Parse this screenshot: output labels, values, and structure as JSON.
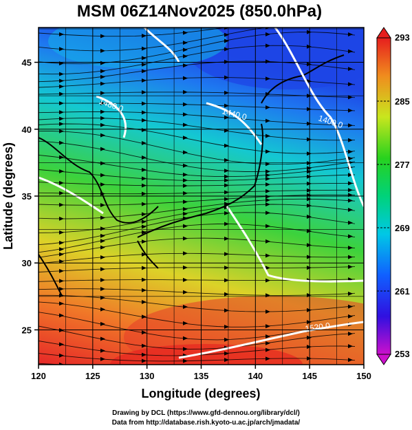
{
  "title": "MSM 06Z14Nov2025 (850.0hPa)",
  "xlabel": "Longitude (degrees)",
  "ylabel": "Latitude  (degrees)",
  "x_ticks": [
    "120",
    "125",
    "130",
    "135",
    "140",
    "145",
    "150"
  ],
  "y_ticks": [
    "25",
    "30",
    "35",
    "40",
    "45"
  ],
  "colorbar": {
    "ticks": [
      "253",
      "261",
      "269",
      "277",
      "285",
      "293"
    ],
    "min": 253,
    "max": 293
  },
  "contour_labels": [
    "1480.0",
    "1440.0",
    "1400.0",
    "1520.0"
  ],
  "credits": {
    "line1": "Drawing by DCL (https://www.gfd-dennou.org/library/dcl/)",
    "line2": "Data from http://database.rish.kyoto-u.ac.jp/arch/jmadata/"
  },
  "map_data": {
    "projection": "equirectangular",
    "lon_range": [
      120,
      150
    ],
    "lat_range": [
      22.4,
      47.6
    ],
    "field": "temperature (K)",
    "contours": "geopotential height (m)",
    "vectors": "wind streamlines"
  }
}
